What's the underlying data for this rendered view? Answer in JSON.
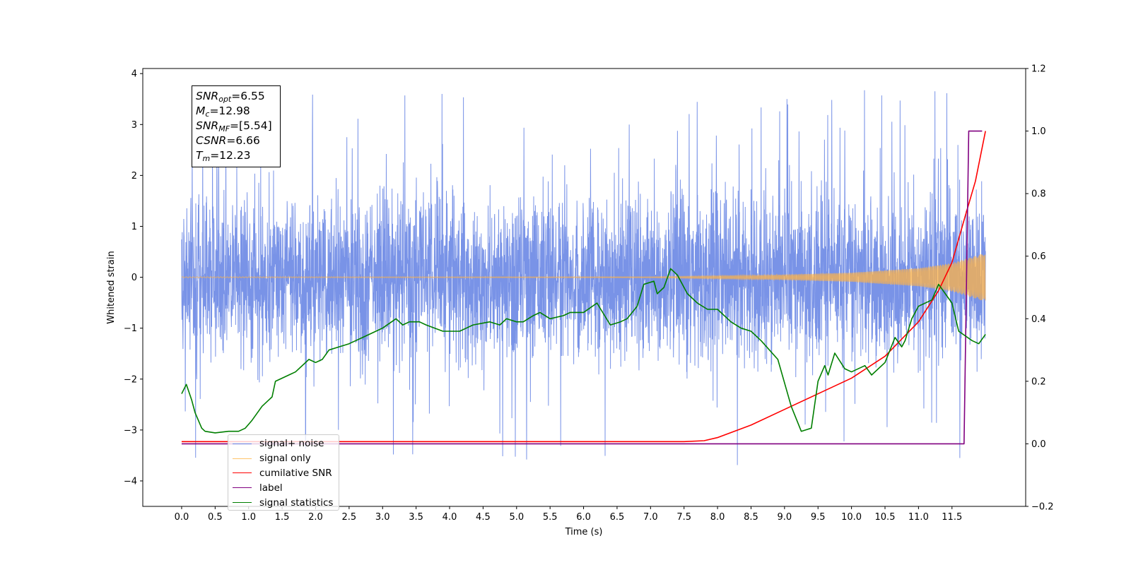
{
  "chart_data": {
    "type": "line",
    "title": "",
    "xlabel": "Time (s)",
    "ylabel": "Whitened strain",
    "ylabel_right": "",
    "xlim": [
      -0.58,
      12.6
    ],
    "ylim": [
      -4.5,
      4.1
    ],
    "ylim_right": [
      -0.2,
      1.2
    ],
    "x_ticks": [
      "0.0",
      "0.5",
      "1.0",
      "1.5",
      "2.0",
      "2.5",
      "3.0",
      "3.5",
      "4.0",
      "4.5",
      "5.0",
      "5.5",
      "6.0",
      "6.5",
      "7.0",
      "7.5",
      "8.0",
      "8.5",
      "9.0",
      "9.5",
      "10.0",
      "10.5",
      "11.0",
      "11.5"
    ],
    "y_ticks_left": [
      "4",
      "3",
      "2",
      "1",
      "0",
      "−1",
      "−2",
      "−3",
      "−4"
    ],
    "y_ticks_right": [
      "1.2",
      "1.0",
      "0.8",
      "0.6",
      "0.4",
      "0.2",
      "0.0",
      "−0.2"
    ],
    "grid": false,
    "legend_position": "lower-left",
    "info_box": {
      "snr_opt_sym": "SNR",
      "snr_opt_sub": "opt",
      "snr_opt_val": "=6.55",
      "mc_sym": "M",
      "mc_sub": "c",
      "mc_val": "=12.98",
      "snr_mf_sym": "SNR",
      "snr_mf_sub": "MF",
      "snr_mf_val": "=[5.54]",
      "csnr_sym": "CSNR",
      "csnr_val": "=6.66",
      "tm_sym": "T",
      "tm_sub": "m",
      "tm_val": "=12.23"
    },
    "series": [
      {
        "name": "signal+ noise",
        "axis": "left",
        "color": "#6a87e4",
        "style": "dense noise, std ≈ 0.8, spikes up to ±3.7",
        "x_range": [
          0.0,
          12.0
        ],
        "noise_std": 0.8,
        "y_max": 3.7,
        "y_min": -4.1
      },
      {
        "name": "signal only",
        "axis": "left",
        "color": "#ffb347",
        "style": "chirp oscillation, amplitude growing toward merger",
        "x_range": [
          0.0,
          12.0
        ],
        "amplitude_points": [
          [
            0.0,
            0.01
          ],
          [
            7.0,
            0.01
          ],
          [
            9.0,
            0.05
          ],
          [
            10.0,
            0.09
          ],
          [
            11.0,
            0.18
          ],
          [
            11.5,
            0.28
          ],
          [
            12.0,
            0.48
          ]
        ]
      },
      {
        "name": "cumilative SNR",
        "axis": "right",
        "color": "#ff0000",
        "x": [
          0.0,
          7.5,
          7.8,
          8.0,
          8.5,
          9.0,
          9.5,
          10.0,
          10.5,
          11.0,
          11.3,
          11.5,
          11.7,
          11.85,
          12.0
        ],
        "values": [
          0.007,
          0.007,
          0.01,
          0.02,
          0.06,
          0.11,
          0.16,
          0.21,
          0.28,
          0.39,
          0.49,
          0.58,
          0.73,
          0.84,
          1.0
        ]
      },
      {
        "name": "label",
        "axis": "right",
        "color": "#800080",
        "x": [
          0.0,
          11.68,
          11.75,
          11.95
        ],
        "values": [
          0.0,
          0.0,
          1.0,
          1.0
        ]
      },
      {
        "name": "signal statistics",
        "axis": "right",
        "color": "#007f00",
        "x": [
          0.0,
          0.07,
          0.15,
          0.2,
          0.3,
          0.35,
          0.5,
          0.7,
          0.85,
          0.95,
          1.05,
          1.2,
          1.35,
          1.4,
          1.6,
          1.7,
          1.9,
          2.0,
          2.1,
          2.2,
          2.35,
          2.5,
          2.7,
          2.9,
          3.0,
          3.2,
          3.3,
          3.4,
          3.55,
          3.65,
          3.9,
          4.0,
          4.15,
          4.25,
          4.35,
          4.6,
          4.75,
          4.85,
          5.0,
          5.1,
          5.25,
          5.35,
          5.5,
          5.7,
          5.8,
          6.0,
          6.2,
          6.4,
          6.55,
          6.65,
          6.8,
          6.9,
          7.05,
          7.1,
          7.2,
          7.3,
          7.4,
          7.5,
          7.55,
          7.7,
          7.85,
          8.0,
          8.2,
          8.35,
          8.5,
          8.65,
          8.9,
          9.1,
          9.25,
          9.4,
          9.5,
          9.6,
          9.65,
          9.75,
          9.9,
          10.0,
          10.2,
          10.3,
          10.5,
          10.65,
          10.75,
          10.8,
          10.9,
          11.0,
          11.2,
          11.3,
          11.4,
          11.5,
          11.6,
          11.8,
          11.9,
          12.0
        ],
        "values": [
          0.16,
          0.19,
          0.14,
          0.1,
          0.05,
          0.04,
          0.035,
          0.04,
          0.04,
          0.05,
          0.075,
          0.12,
          0.15,
          0.2,
          0.22,
          0.23,
          0.27,
          0.26,
          0.27,
          0.3,
          0.31,
          0.32,
          0.34,
          0.36,
          0.37,
          0.4,
          0.38,
          0.39,
          0.39,
          0.38,
          0.36,
          0.36,
          0.36,
          0.37,
          0.38,
          0.39,
          0.38,
          0.4,
          0.39,
          0.39,
          0.41,
          0.42,
          0.4,
          0.41,
          0.42,
          0.42,
          0.45,
          0.38,
          0.39,
          0.4,
          0.44,
          0.51,
          0.52,
          0.48,
          0.5,
          0.56,
          0.54,
          0.5,
          0.48,
          0.45,
          0.43,
          0.43,
          0.39,
          0.37,
          0.36,
          0.33,
          0.27,
          0.12,
          0.04,
          0.05,
          0.2,
          0.25,
          0.22,
          0.29,
          0.24,
          0.23,
          0.25,
          0.22,
          0.26,
          0.34,
          0.31,
          0.33,
          0.4,
          0.44,
          0.46,
          0.51,
          0.48,
          0.45,
          0.36,
          0.33,
          0.32,
          0.35
        ]
      }
    ]
  }
}
